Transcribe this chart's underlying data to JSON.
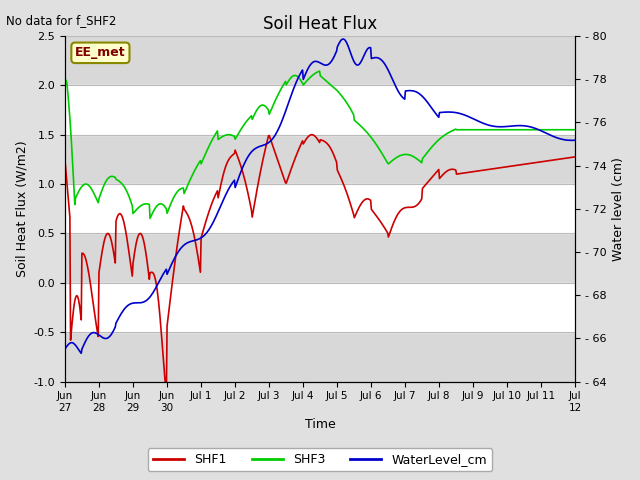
{
  "title": "Soil Heat Flux",
  "top_left_text": "No data for f_SHF2",
  "annotation_text": "EE_met",
  "xlabel": "Time",
  "ylabel_left": "Soil Heat Flux (W/m2)",
  "ylabel_right": "Water level (cm)",
  "ylim_left": [
    -1.0,
    2.5
  ],
  "ylim_right": [
    64,
    80
  ],
  "yticks_left": [
    -1.0,
    -0.5,
    0.0,
    0.5,
    1.0,
    1.5,
    2.0,
    2.5
  ],
  "yticks_right": [
    64,
    66,
    68,
    70,
    72,
    74,
    76,
    78,
    80
  ],
  "xtick_labels": [
    "Jun\n27",
    "Jun\n28",
    "Jun\n29",
    "Jun\n30",
    "Jul 1",
    "Jul 2",
    "Jul 3",
    "Jul 4",
    "Jul 5",
    "Jul 6",
    "Jul 7",
    "Jul 8",
    "Jul 9",
    "Jul 10",
    "Jul 11",
    "Jul\n12"
  ],
  "color_SHF1": "#cc0000",
  "color_SHF3": "#00cc00",
  "color_WaterLevel": "#0000cc",
  "background_color": "#e0e0e0",
  "plot_bg_color": "#d0d0d0",
  "stripe_color": "#c0c0c0",
  "legend_colors": [
    "#cc0000",
    "#00cc00",
    "#0000cc"
  ],
  "legend_labels": [
    "SHF1",
    "SHF3",
    "WaterLevel_cm"
  ]
}
